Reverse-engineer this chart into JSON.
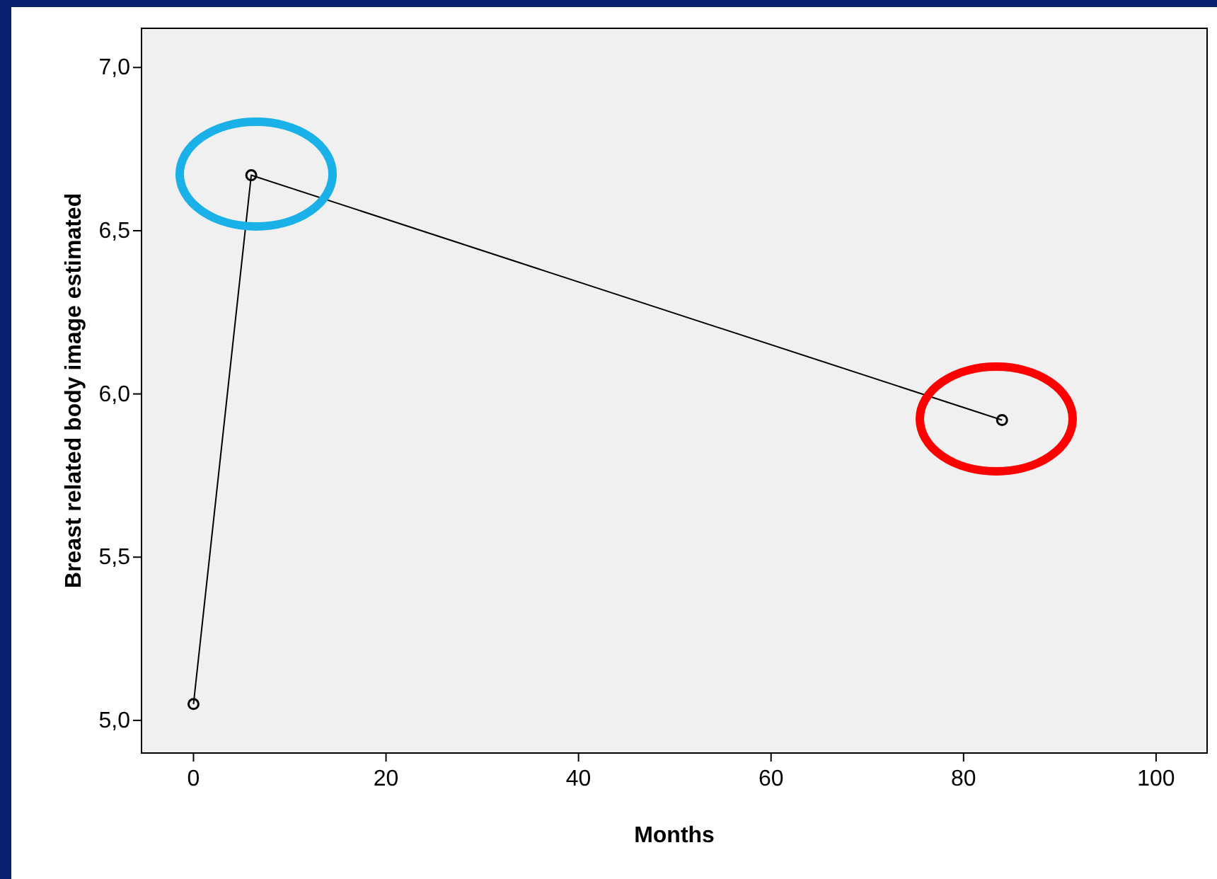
{
  "chart_data": {
    "type": "line",
    "xlabel": "Months",
    "ylabel": "Breast related body image estimated",
    "x": [
      0,
      6,
      84
    ],
    "series": [
      {
        "color": "#000000",
        "values": [
          5.05,
          6.67,
          5.92
        ]
      }
    ],
    "xlim": [
      -5.4,
      105.3
    ],
    "ylim": [
      4.9,
      7.12
    ],
    "xticks": [
      0,
      20,
      40,
      60,
      80,
      100
    ],
    "yticks": [
      {
        "value": 5,
        "label": "5,0"
      },
      {
        "value": 5.5,
        "label": "5,5"
      },
      {
        "value": 6,
        "label": "6,0"
      },
      {
        "value": 6.5,
        "label": "6,5"
      },
      {
        "value": 7,
        "label": "7,0"
      }
    ],
    "grid": false,
    "marker": "circle",
    "line_style": "solid"
  }
}
